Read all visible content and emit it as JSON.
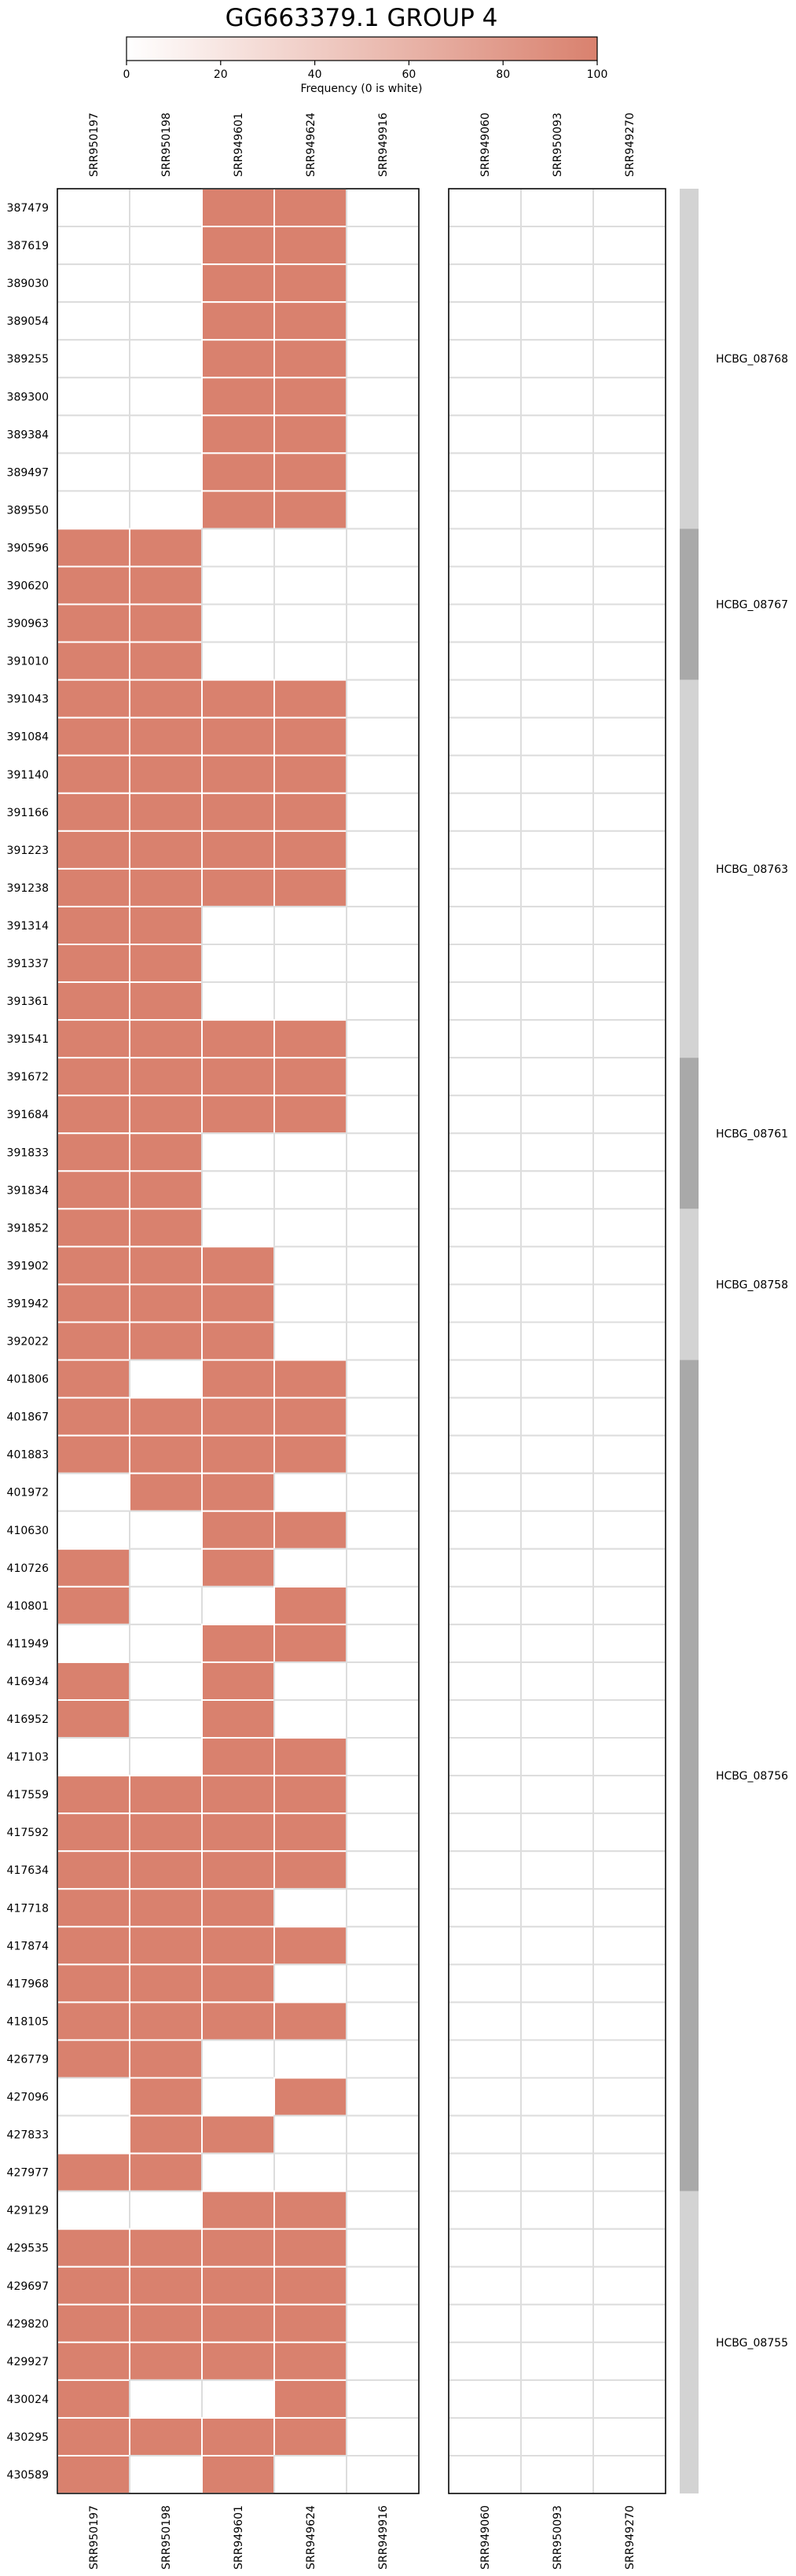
{
  "chart_data": {
    "type": "heatmap",
    "title": "GG663379.1 GROUP 4",
    "colorbar": {
      "label": "Frequency (0 is white)",
      "ticks": [
        0,
        20,
        40,
        60,
        80,
        100
      ],
      "range": [
        0,
        100
      ],
      "color_low": "#ffffff",
      "color_high": "#d9816e"
    },
    "cell_color": "#d9816e",
    "grid_color": "#dddddd",
    "panels": [
      {
        "columns": [
          "SRR950197",
          "SRR950198",
          "SRR949601",
          "SRR949624",
          "SRR949916"
        ]
      },
      {
        "columns": [
          "SRR949060",
          "SRR950093",
          "SRR949270"
        ]
      }
    ],
    "rows": [
      "387479",
      "387619",
      "389030",
      "389054",
      "389255",
      "389300",
      "389384",
      "389497",
      "389550",
      "390596",
      "390620",
      "390963",
      "391010",
      "391043",
      "391084",
      "391140",
      "391166",
      "391223",
      "391238",
      "391314",
      "391337",
      "391361",
      "391541",
      "391672",
      "391684",
      "391833",
      "391834",
      "391852",
      "391902",
      "391942",
      "392022",
      "401806",
      "401867",
      "401883",
      "401972",
      "410630",
      "410726",
      "410801",
      "411949",
      "416934",
      "416952",
      "417103",
      "417559",
      "417592",
      "417634",
      "417718",
      "417874",
      "417968",
      "418105",
      "426779",
      "427096",
      "427833",
      "427977",
      "429129",
      "429535",
      "429697",
      "429820",
      "429927",
      "430024",
      "430295",
      "430589"
    ],
    "values_panel1": [
      [
        0,
        0,
        100,
        100,
        0
      ],
      [
        0,
        0,
        100,
        100,
        0
      ],
      [
        0,
        0,
        100,
        100,
        0
      ],
      [
        0,
        0,
        100,
        100,
        0
      ],
      [
        0,
        0,
        100,
        100,
        0
      ],
      [
        0,
        0,
        100,
        100,
        0
      ],
      [
        0,
        0,
        100,
        100,
        0
      ],
      [
        0,
        0,
        100,
        100,
        0
      ],
      [
        0,
        0,
        100,
        100,
        0
      ],
      [
        100,
        100,
        0,
        0,
        0
      ],
      [
        100,
        100,
        0,
        0,
        0
      ],
      [
        100,
        100,
        0,
        0,
        0
      ],
      [
        100,
        100,
        0,
        0,
        0
      ],
      [
        100,
        100,
        100,
        100,
        0
      ],
      [
        100,
        100,
        100,
        100,
        0
      ],
      [
        100,
        100,
        100,
        100,
        0
      ],
      [
        100,
        100,
        100,
        100,
        0
      ],
      [
        100,
        100,
        100,
        100,
        0
      ],
      [
        100,
        100,
        100,
        100,
        0
      ],
      [
        100,
        100,
        0,
        0,
        0
      ],
      [
        100,
        100,
        0,
        0,
        0
      ],
      [
        100,
        100,
        0,
        0,
        0
      ],
      [
        100,
        100,
        100,
        100,
        0
      ],
      [
        100,
        100,
        100,
        100,
        0
      ],
      [
        100,
        100,
        100,
        100,
        0
      ],
      [
        100,
        100,
        0,
        0,
        0
      ],
      [
        100,
        100,
        0,
        0,
        0
      ],
      [
        100,
        100,
        0,
        0,
        0
      ],
      [
        100,
        100,
        100,
        0,
        0
      ],
      [
        100,
        100,
        100,
        0,
        0
      ],
      [
        100,
        100,
        100,
        0,
        0
      ],
      [
        100,
        0,
        100,
        100,
        0
      ],
      [
        100,
        100,
        100,
        100,
        0
      ],
      [
        100,
        100,
        100,
        100,
        0
      ],
      [
        0,
        100,
        100,
        0,
        0
      ],
      [
        0,
        0,
        100,
        100,
        0
      ],
      [
        100,
        0,
        100,
        0,
        0
      ],
      [
        100,
        0,
        0,
        100,
        0
      ],
      [
        0,
        0,
        100,
        100,
        0
      ],
      [
        100,
        0,
        100,
        0,
        0
      ],
      [
        100,
        0,
        100,
        0,
        0
      ],
      [
        0,
        0,
        100,
        100,
        0
      ],
      [
        100,
        100,
        100,
        100,
        0
      ],
      [
        100,
        100,
        100,
        100,
        0
      ],
      [
        100,
        100,
        100,
        100,
        0
      ],
      [
        100,
        100,
        100,
        0,
        0
      ],
      [
        100,
        100,
        100,
        100,
        0
      ],
      [
        100,
        100,
        100,
        0,
        0
      ],
      [
        100,
        100,
        100,
        100,
        0
      ],
      [
        100,
        100,
        0,
        0,
        0
      ],
      [
        0,
        100,
        0,
        100,
        0
      ],
      [
        0,
        100,
        100,
        0,
        0
      ],
      [
        100,
        100,
        0,
        0,
        0
      ],
      [
        0,
        0,
        100,
        100,
        0
      ],
      [
        100,
        100,
        100,
        100,
        0
      ],
      [
        100,
        100,
        100,
        100,
        0
      ],
      [
        100,
        100,
        100,
        100,
        0
      ],
      [
        100,
        100,
        100,
        100,
        0
      ],
      [
        100,
        0,
        0,
        100,
        0
      ],
      [
        100,
        100,
        100,
        100,
        0
      ],
      [
        100,
        0,
        100,
        0,
        0
      ]
    ],
    "values_panel2_all": 0,
    "groups": [
      {
        "label": "HCBG_08768",
        "rows": 9,
        "shade": "light"
      },
      {
        "label": "HCBG_08767",
        "rows": 4,
        "shade": "dark"
      },
      {
        "label": "HCBG_08763",
        "rows": 10,
        "shade": "light"
      },
      {
        "label": "HCBG_08761",
        "rows": 4,
        "shade": "dark"
      },
      {
        "label": "HCBG_08758",
        "rows": 4,
        "shade": "light"
      },
      {
        "label": "HCBG_08756",
        "rows": 22,
        "shade": "dark"
      },
      {
        "label": "HCBG_08755",
        "rows": 8,
        "shade": "light"
      }
    ],
    "group_shades": {
      "light": "#d3d3d3",
      "dark": "#a9a9a9"
    }
  }
}
